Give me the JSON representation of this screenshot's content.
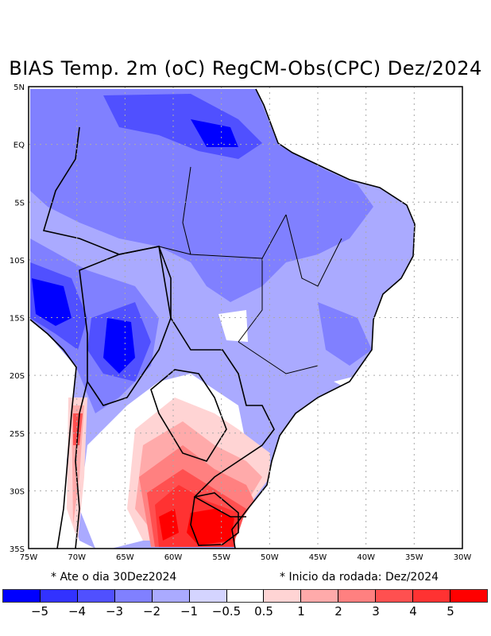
{
  "title": "BIAS Temp. 2m (oC) RegCM-Obs(CPC) Dez/2024",
  "lat_labels": [
    "5N",
    "EQ",
    "5S",
    "10S",
    "15S",
    "20S",
    "25S",
    "30S",
    "35S"
  ],
  "lon_labels": [
    "75W",
    "70W",
    "65W",
    "60W",
    "55W",
    "50W",
    "45W",
    "40W",
    "35W",
    "30W"
  ],
  "notes": {
    "left": "* Ate o dia 30Dez2024",
    "right": "* Inicio da rodada: Dez/2024"
  },
  "colorbar": {
    "colors": [
      "#0000ff",
      "#3232ff",
      "#5050ff",
      "#8080ff",
      "#aaaaff",
      "#d4d4ff",
      "#ffffff",
      "#ffd4d4",
      "#ffaaaa",
      "#ff8080",
      "#ff5050",
      "#ff3232",
      "#ff0000"
    ],
    "labels": [
      "−5",
      "−4",
      "−3",
      "−2",
      "−1",
      "−0.5",
      "0.5",
      "1",
      "2",
      "3",
      "4",
      "5"
    ]
  }
}
